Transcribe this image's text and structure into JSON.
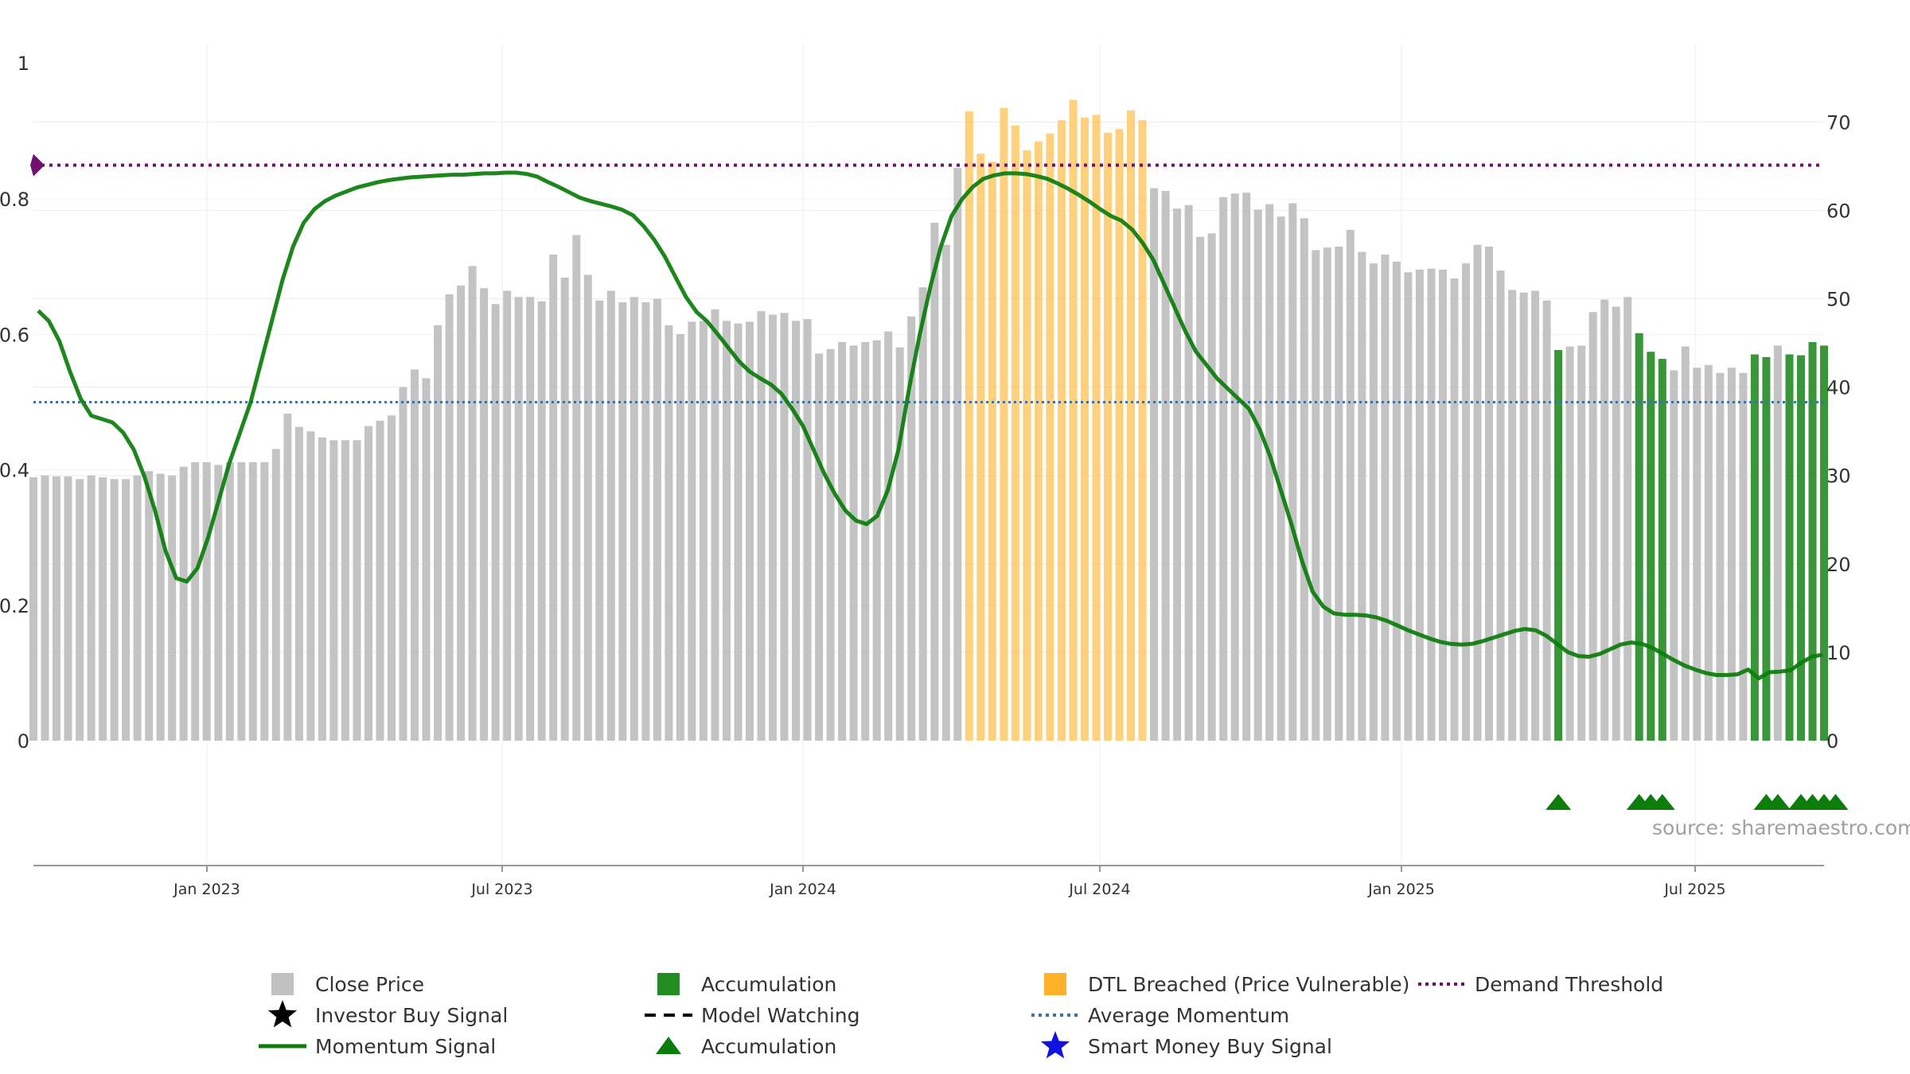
{
  "chart_data": {
    "type": "bar",
    "source_text": "source: sharemaestro.com",
    "x_ticks": [
      "Jan 2023",
      "Jul 2023",
      "Jan 2024",
      "Jul 2024",
      "Jan 2025",
      "Jul 2025"
    ],
    "left_axis": {
      "ticks": [
        "0",
        "0.2",
        "0.4",
        "0.6",
        "0.8",
        "1"
      ],
      "ylim": [
        0,
        1
      ]
    },
    "right_axis": {
      "ticks": [
        "0",
        "10",
        "20",
        "30",
        "40",
        "50",
        "60",
        "70"
      ],
      "ylim": [
        0,
        76.6
      ]
    },
    "average_momentum": 0.5,
    "demand_threshold": 0.85,
    "colors": {
      "close": "#c0c0c0",
      "accumulation": "#228b22",
      "dtl": "#ffc966",
      "momentum": "#0a7d0a",
      "average": "#3a72a6",
      "demand": "#701070",
      "marker": "#0a7d0a"
    },
    "close_prices": [
      29.8,
      30.0,
      29.9,
      29.9,
      29.6,
      30.0,
      29.8,
      29.6,
      29.6,
      30.0,
      30.5,
      30.2,
      30.0,
      31.0,
      31.5,
      31.5,
      31.2,
      31.5,
      31.5,
      31.5,
      31.5,
      33.0,
      37.0,
      35.5,
      35.0,
      34.3,
      34.0,
      34.0,
      34.0,
      35.6,
      36.2,
      36.8,
      40.0,
      42.0,
      41.0,
      47.0,
      50.5,
      51.5,
      53.7,
      51.2,
      49.4,
      50.9,
      50.2,
      50.2,
      49.7,
      55.0,
      52.4,
      57.2,
      52.7,
      49.8,
      50.9,
      49.6,
      50.2,
      49.6,
      50.0,
      47.0,
      46.0,
      47.4,
      47.5,
      48.8,
      47.5,
      47.2,
      47.4,
      48.6,
      48.2,
      48.4,
      47.5,
      47.7,
      43.8,
      44.3,
      45.1,
      44.7,
      45.1,
      45.3,
      46.3,
      44.5,
      48.0,
      51.3,
      58.6,
      56.1,
      64.8,
      71.2,
      66.4,
      65.5,
      71.6,
      69.6,
      66.8,
      67.8,
      68.7,
      70.2,
      72.5,
      70.5,
      70.8,
      68.8,
      69.2,
      71.3,
      70.2,
      62.5,
      62.2,
      60.2,
      60.6,
      57.0,
      57.4,
      61.5,
      61.9,
      62.0,
      60.1,
      60.7,
      59.3,
      60.8,
      59.1,
      55.5,
      55.8,
      55.9,
      57.8,
      55.3,
      54.0,
      55.0,
      54.2,
      53.0,
      53.3,
      53.4,
      53.3,
      52.3,
      54.0,
      56.1,
      55.9,
      53.2,
      51.0,
      50.7,
      50.9,
      49.8,
      44.2,
      44.6,
      44.7,
      48.5,
      49.9,
      49.1,
      50.2,
      46.1,
      44.0,
      43.2,
      41.9,
      44.6,
      42.2,
      42.5,
      41.6,
      42.2,
      41.6,
      43.7,
      43.4,
      44.7,
      43.7,
      43.6,
      45.1,
      44.7
    ],
    "accumulation_bar_indices": [
      132,
      139,
      140,
      141,
      149,
      150,
      152,
      153,
      154,
      155
    ],
    "dtl_bar_range": [
      81,
      96
    ],
    "momentum_signal": [
      0.635,
      0.62,
      0.59,
      0.545,
      0.505,
      0.48,
      0.475,
      0.47,
      0.455,
      0.43,
      0.39,
      0.34,
      0.28,
      0.24,
      0.235,
      0.255,
      0.3,
      0.355,
      0.41,
      0.455,
      0.5,
      0.56,
      0.62,
      0.68,
      0.73,
      0.765,
      0.785,
      0.797,
      0.805,
      0.811,
      0.817,
      0.821,
      0.825,
      0.828,
      0.83,
      0.832,
      0.833,
      0.834,
      0.835,
      0.836,
      0.836,
      0.837,
      0.838,
      0.838,
      0.839,
      0.839,
      0.837,
      0.833,
      0.825,
      0.818,
      0.81,
      0.802,
      0.797,
      0.793,
      0.789,
      0.784,
      0.776,
      0.76,
      0.74,
      0.715,
      0.685,
      0.655,
      0.633,
      0.619,
      0.6,
      0.58,
      0.56,
      0.545,
      0.535,
      0.526,
      0.512,
      0.49,
      0.465,
      0.43,
      0.395,
      0.365,
      0.34,
      0.325,
      0.32,
      0.332,
      0.37,
      0.43,
      0.52,
      0.6,
      0.67,
      0.73,
      0.775,
      0.8,
      0.818,
      0.83,
      0.835,
      0.838,
      0.838,
      0.837,
      0.834,
      0.83,
      0.823,
      0.815,
      0.806,
      0.796,
      0.785,
      0.775,
      0.768,
      0.755,
      0.735,
      0.71,
      0.675,
      0.64,
      0.605,
      0.575,
      0.555,
      0.535,
      0.52,
      0.505,
      0.49,
      0.46,
      0.42,
      0.37,
      0.32,
      0.265,
      0.22,
      0.198,
      0.188,
      0.186,
      0.186,
      0.185,
      0.182,
      0.177,
      0.17,
      0.163,
      0.157,
      0.151,
      0.146,
      0.143,
      0.142,
      0.143,
      0.147,
      0.152,
      0.157,
      0.162,
      0.165,
      0.163,
      0.155,
      0.143,
      0.131,
      0.125,
      0.124,
      0.128,
      0.135,
      0.142,
      0.145,
      0.143,
      0.137,
      0.128,
      0.119,
      0.111,
      0.105,
      0.1,
      0.097,
      0.097,
      0.098,
      0.105,
      0.092,
      0.101,
      0.102,
      0.104,
      0.115,
      0.124,
      0.127
    ],
    "accumulation_markers_bar_indices": [
      132,
      139,
      140,
      141,
      150,
      151,
      153,
      154,
      155,
      156
    ],
    "legend": [
      {
        "label": "Close Price",
        "symbol": "square",
        "color": "#c0c0c0"
      },
      {
        "label": "Investor Buy Signal",
        "symbol": "star",
        "color": "#000000"
      },
      {
        "label": "Momentum Signal",
        "symbol": "line",
        "color": "#0a7d0a"
      },
      {
        "label": "Accumulation",
        "symbol": "square",
        "color": "#228b22"
      },
      {
        "label": "Model Watching",
        "symbol": "dash",
        "color": "#000000"
      },
      {
        "label": "Accumulation",
        "symbol": "triangle",
        "color": "#0a7d0a"
      },
      {
        "label": "DTL Breached (Price Vulnerable)",
        "symbol": "square",
        "color": "#ffb12a"
      },
      {
        "label": "Average Momentum",
        "symbol": "dotted",
        "color": "#3a72a6"
      },
      {
        "label": "Smart Money Buy Signal",
        "symbol": "star",
        "color": "#1212e0"
      },
      {
        "label": "Demand Threshold",
        "symbol": "dotted",
        "color": "#701070"
      }
    ]
  }
}
